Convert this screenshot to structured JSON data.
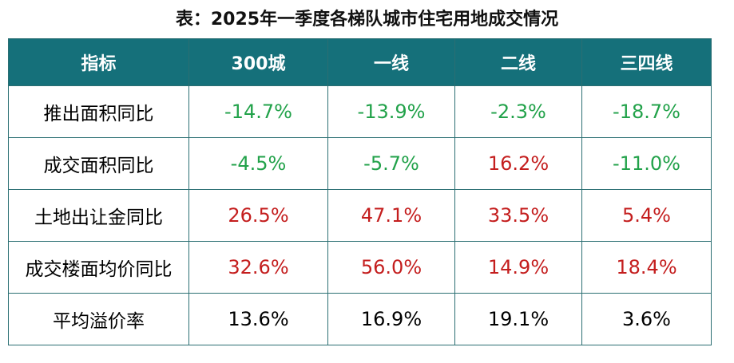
{
  "title": "表：2025年一季度各梯队城市住宅用地成交情况",
  "colors": {
    "header_bg": "#15707a",
    "header_text": "#ffffff",
    "border": "#2b6f73",
    "negative": "#22a24a",
    "positive": "#c41e1e",
    "neutral": "#000000"
  },
  "chart_data": {
    "type": "table",
    "title": "表：2025年一季度各梯队城市住宅用地成交情况",
    "columns": [
      "指标",
      "300城",
      "一线",
      "二线",
      "三四线"
    ],
    "rows": [
      {
        "label": "推出面积同比",
        "values": [
          "-14.7%",
          "-13.9%",
          "-2.3%",
          "-18.7%"
        ],
        "colors": [
          "green",
          "green",
          "green",
          "green"
        ]
      },
      {
        "label": "成交面积同比",
        "values": [
          "-4.5%",
          "-5.7%",
          "16.2%",
          "-11.0%"
        ],
        "colors": [
          "green",
          "green",
          "red",
          "green"
        ]
      },
      {
        "label": "土地出让金同比",
        "values": [
          "26.5%",
          "47.1%",
          "33.5%",
          "5.4%"
        ],
        "colors": [
          "red",
          "red",
          "red",
          "red"
        ]
      },
      {
        "label": "成交楼面均价同比",
        "values": [
          "32.6%",
          "56.0%",
          "14.9%",
          "18.4%"
        ],
        "colors": [
          "red",
          "red",
          "red",
          "red"
        ]
      },
      {
        "label": "平均溢价率",
        "values": [
          "13.6%",
          "16.9%",
          "19.1%",
          "3.6%"
        ],
        "colors": [
          "black",
          "black",
          "black",
          "black"
        ]
      }
    ]
  }
}
